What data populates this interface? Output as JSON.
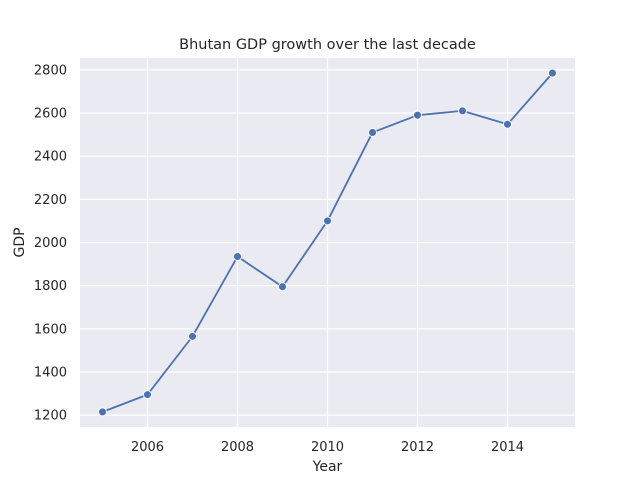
{
  "chart_data": {
    "type": "line",
    "title": "Bhutan GDP growth over the last decade",
    "xlabel": "Year",
    "ylabel": "GDP",
    "x": [
      2005,
      2006,
      2007,
      2008,
      2009,
      2010,
      2011,
      2012,
      2013,
      2014,
      2015
    ],
    "series": [
      {
        "values": [
          1215,
          1295,
          1565,
          1935,
          1795,
          2100,
          2510,
          2590,
          2610,
          2548,
          2785
        ]
      }
    ],
    "xlim": [
      2004.5,
      2015.5
    ],
    "ylim": [
      1145,
      2855
    ],
    "xticks": [
      2006,
      2008,
      2010,
      2012,
      2014
    ],
    "yticks": [
      1200,
      1400,
      1600,
      1800,
      2000,
      2200,
      2400,
      2600,
      2800
    ],
    "grid": true,
    "markers": true,
    "colors": {
      "background": "#eaeaf2",
      "grid": "#ffffff",
      "line": "#4c72b0",
      "text": "#262626"
    }
  }
}
